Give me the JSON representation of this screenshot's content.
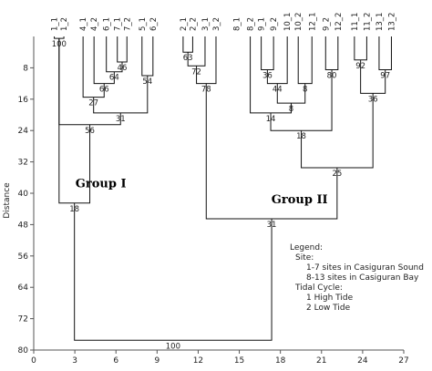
{
  "chart_data": {
    "type": "dendrogram",
    "ylabel": "Distance",
    "y_axis": {
      "range": [
        0,
        80
      ],
      "inverted": true,
      "ticks": [
        "8",
        "16",
        "24",
        "32",
        "40",
        "48",
        "56",
        "64",
        "72",
        "80"
      ]
    },
    "x_axis": {
      "range": [
        0,
        27
      ],
      "ticks": [
        "0",
        "3",
        "6",
        "9",
        "12",
        "15",
        "18",
        "21",
        "24",
        "27"
      ]
    },
    "leaves": [
      {
        "label": "1_1",
        "x": 1.5
      },
      {
        "label": "1_2",
        "x": 2.2
      },
      {
        "label": "4_1",
        "x": 3.6
      },
      {
        "label": "4_2",
        "x": 4.4
      },
      {
        "label": "6_1",
        "x": 5.3
      },
      {
        "label": "7_1",
        "x": 6.1
      },
      {
        "label": "7_2",
        "x": 6.8
      },
      {
        "label": "5_1",
        "x": 7.9
      },
      {
        "label": "6_2",
        "x": 8.7
      },
      {
        "label": "2_1",
        "x": 10.9
      },
      {
        "label": "2_2",
        "x": 11.6
      },
      {
        "label": "3_1",
        "x": 12.5
      },
      {
        "label": "3_2",
        "x": 13.3
      },
      {
        "label": "8_1",
        "x": 14.8
      },
      {
        "label": "8_2",
        "x": 15.8
      },
      {
        "label": "9_1",
        "x": 16.6
      },
      {
        "label": "9_2",
        "x": 17.5
      },
      {
        "label": "10_1",
        "x": 18.5
      },
      {
        "label": "10_2",
        "x": 19.3
      },
      {
        "label": "12_1",
        "x": 20.3
      },
      {
        "label": "9_2",
        "x": 21.3
      },
      {
        "label": "12_2",
        "x": 22.2
      },
      {
        "label": "11_1",
        "x": 23.4
      },
      {
        "label": "11_2",
        "x": 24.3
      },
      {
        "label": "13_1",
        "x": 25.2
      },
      {
        "label": "13_2",
        "x": 26.1
      }
    ],
    "merges": [
      {
        "id": "m1",
        "value": "100",
        "left": "1_1",
        "right": "1_2",
        "height": 0.5
      },
      {
        "id": "m2",
        "value": "46",
        "left": "7_1",
        "right": "7_2",
        "height": 6.5
      },
      {
        "id": "m3",
        "value": "64",
        "left": "6_1",
        "right": "m2",
        "height": 9
      },
      {
        "id": "m4",
        "value": "66",
        "left": "4_2",
        "right": "m3",
        "height": 12
      },
      {
        "id": "m5",
        "value": "27",
        "left": "4_1",
        "right": "m4",
        "height": 15.5
      },
      {
        "id": "m6",
        "value": "54",
        "left": "5_1",
        "right": "6_2",
        "height": 10
      },
      {
        "id": "m7",
        "value": "31",
        "left": "m5",
        "right": "m6",
        "height": 19.5
      },
      {
        "id": "m8",
        "value": "56",
        "left": "m7",
        "right": "m1",
        "height": 22.5
      },
      {
        "id": "m9",
        "value": "18",
        "left": "m1",
        "right": "m8",
        "height": 42.5
      },
      {
        "id": "m10",
        "value": "63",
        "left": "2_1",
        "right": "2_2",
        "height": 4
      },
      {
        "id": "m11",
        "value": "72",
        "left": "m10",
        "right": "3_1",
        "height": 7.5
      },
      {
        "id": "m12",
        "value": "78",
        "left": "m11",
        "right": "3_2",
        "height": 12
      },
      {
        "id": "m13",
        "value": "36",
        "left": "9_1",
        "right": "9_2",
        "height": 8.5
      },
      {
        "id": "m14",
        "value": "44",
        "left": "m13",
        "right": "10_1",
        "height": 12
      },
      {
        "id": "m15",
        "value": "8",
        "left": "10_2",
        "right": "12_1",
        "height": 12
      },
      {
        "id": "m16",
        "value": "8",
        "left": "m14",
        "right": "m15",
        "height": 17
      },
      {
        "id": "m17",
        "value": "14",
        "left": "8_2",
        "right": "m16",
        "height": 19.5
      },
      {
        "id": "m18",
        "value": "80",
        "left": "9_2b",
        "right": "12_2",
        "height": 8.5
      },
      {
        "id": "m19",
        "value": "92",
        "left": "11_1",
        "right": "11_2",
        "height": 6
      },
      {
        "id": "m20",
        "value": "97",
        "left": "13_1",
        "right": "13_2",
        "height": 8.5
      },
      {
        "id": "m21",
        "value": "36",
        "left": "m19",
        "right": "m20",
        "height": 14.5
      },
      {
        "id": "m22",
        "value": "18",
        "left": "m17",
        "right": "m18",
        "height": 24
      },
      {
        "id": "m23",
        "value": "25",
        "left": "m22",
        "right": "m21",
        "height": 33.5
      },
      {
        "id": "m24",
        "value": "31",
        "left": "m12",
        "right": "m23",
        "height": 46.5
      },
      {
        "id": "m25",
        "value": "100",
        "left": "m9",
        "right": "m24",
        "height": 77.5
      }
    ],
    "group_labels": [
      "Group I",
      "Group II"
    ],
    "legend": {
      "title": "Legend:",
      "lines": [
        "Site:",
        "1-7  sites in Casiguran Sound",
        "8-13 sites in Casiguran Bay",
        "Tidal Cycle:",
        "1  High Tide",
        "2  Low Tide"
      ]
    }
  }
}
